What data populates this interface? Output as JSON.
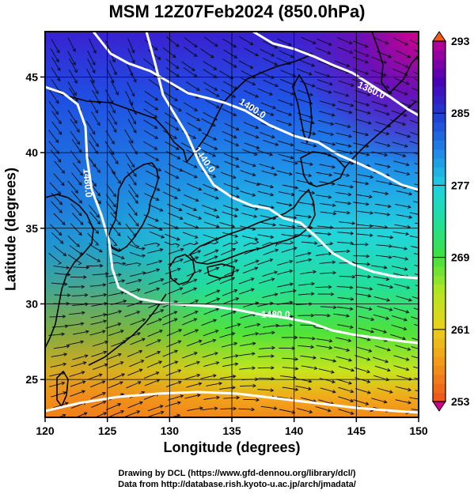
{
  "title": "MSM 12Z07Feb2024 (850.0hPa)",
  "axes": {
    "xlabel": "Longitude (degrees)",
    "ylabel": "Latitude  (degrees)",
    "xticks": [
      "120",
      "125",
      "130",
      "135",
      "140",
      "145",
      "150"
    ],
    "yticks": [
      "25",
      "30",
      "35",
      "40",
      "45"
    ]
  },
  "colorbar": {
    "ticks": [
      "293",
      "285",
      "277",
      "269",
      "261",
      "253"
    ],
    "colors": [
      "#b0009a",
      "#4a00b5",
      "#1e3fd4",
      "#1f86e8",
      "#1fd0e0",
      "#20e09a",
      "#3fe03f",
      "#b5e61f",
      "#e8d21a",
      "#f29a1a",
      "#ef5a1a"
    ]
  },
  "contours": [
    "1360.0",
    "1400.0",
    "1440.0",
    "1480.0",
    "1480.0"
  ],
  "credits": {
    "line1": "Drawing by DCL (https://www.gfd-dennou.org/library/dcl/)",
    "line2": "Data from http://database.rish.kyoto-u.ac.jp/arch/jmadata/"
  }
}
